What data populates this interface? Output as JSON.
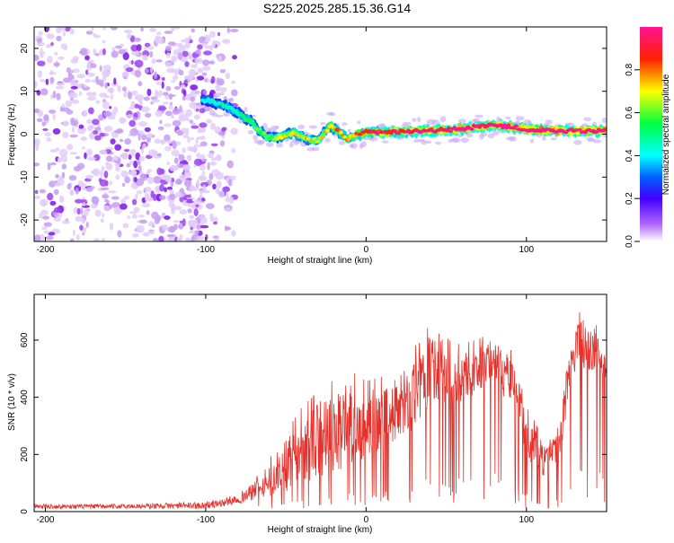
{
  "figure": {
    "title": "S225.2025.285.15.36.G14"
  },
  "chart_data": [
    {
      "type": "heatmap",
      "name": "spectrogram",
      "xlabel": "Height of straight line (km)",
      "ylabel": "Frequency (Hz)",
      "xlim": [
        -207,
        150
      ],
      "ylim": [
        -25,
        25
      ],
      "xticks": [
        -200,
        -100,
        0,
        100
      ],
      "xtick_labels": [
        "-200",
        "-100",
        "0",
        "100"
      ],
      "yticks": [
        -20,
        -10,
        0,
        10,
        20
      ],
      "ytick_labels": [
        "-20",
        "-10",
        "0",
        "10",
        "20"
      ],
      "colorbar": {
        "label": "Normalized spectral amplitude",
        "range": [
          0,
          1
        ],
        "ticks": [
          0.0,
          0.2,
          0.4,
          0.6,
          0.8
        ],
        "tick_labels": [
          "0.0",
          "0.2",
          "0.4",
          "0.6",
          "0.8"
        ],
        "colors": [
          "#ffffff",
          "#9b30ff",
          "#0000ff",
          "#00ffff",
          "#00ff00",
          "#ffff00",
          "#ff0000",
          "#ff1493"
        ]
      },
      "noise_region_x": [
        -207,
        -82
      ],
      "trace": {
        "x": [
          -100,
          -90,
          -80,
          -72,
          -66,
          -60,
          -52,
          -45,
          -38,
          -30,
          -22,
          -18,
          -12,
          -5,
          0,
          20,
          40,
          60,
          70,
          80,
          90,
          100,
          110,
          130,
          150
        ],
        "freq": [
          8,
          7,
          5,
          3,
          0.5,
          -1,
          -0.5,
          0.5,
          -1,
          -1.5,
          2,
          0.8,
          -1,
          0,
          0.5,
          0.5,
          0.8,
          1.2,
          1.8,
          2,
          1.8,
          1.2,
          0.8,
          0.8,
          0.8
        ],
        "amplitude": [
          0.25,
          0.3,
          0.35,
          0.4,
          0.45,
          0.45,
          0.5,
          0.55,
          0.55,
          0.5,
          0.6,
          0.65,
          0.6,
          0.7,
          0.75,
          0.8,
          0.85,
          0.9,
          0.9,
          0.85,
          0.9,
          0.95,
          0.95,
          0.9,
          0.9
        ]
      }
    },
    {
      "type": "line",
      "name": "snr",
      "xlabel": "Height of straight line (km)",
      "ylabel": "SNR (10 * v/v)",
      "xlim": [
        -207,
        150
      ],
      "ylim": [
        0,
        760
      ],
      "xticks": [
        -200,
        -100,
        0,
        100
      ],
      "xtick_labels": [
        "-200",
        "-100",
        "0",
        "100"
      ],
      "yticks": [
        0,
        200,
        400,
        600
      ],
      "ytick_labels": [
        "0",
        "200",
        "400",
        "600"
      ],
      "color": "#e8302a",
      "envelope": {
        "x": [
          -207,
          -150,
          -100,
          -90,
          -80,
          -70,
          -60,
          -50,
          -40,
          -30,
          -20,
          -10,
          0,
          10,
          20,
          30,
          35,
          40,
          45,
          50,
          55,
          60,
          70,
          80,
          85,
          90,
          95,
          100,
          105,
          110,
          115,
          120,
          125,
          130,
          135,
          140,
          145,
          150
        ],
        "base": [
          18,
          18,
          22,
          30,
          45,
          70,
          110,
          160,
          210,
          250,
          280,
          300,
          300,
          330,
          360,
          410,
          440,
          510,
          500,
          480,
          470,
          470,
          500,
          540,
          470,
          480,
          450,
          250,
          240,
          180,
          200,
          220,
          420,
          560,
          600,
          560,
          560,
          490
        ],
        "amp": [
          8,
          8,
          12,
          15,
          18,
          30,
          60,
          90,
          120,
          130,
          140,
          150,
          120,
          110,
          110,
          130,
          120,
          120,
          130,
          100,
          90,
          90,
          80,
          70,
          90,
          90,
          80,
          90,
          60,
          60,
          40,
          60,
          80,
          80,
          90,
          100,
          60,
          40
        ]
      }
    }
  ]
}
